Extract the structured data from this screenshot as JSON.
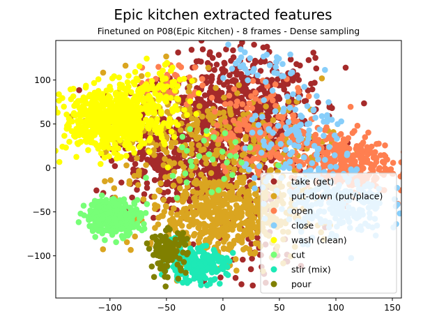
{
  "chart_data": {
    "type": "scatter",
    "title": "Epic kitchen extracted features",
    "subtitle": "Finetuned on P08(Epic Kitchen) - 8 frames - Dense sampling",
    "xlabel": "",
    "ylabel": "",
    "xlim": [
      -148,
      158
    ],
    "ylim": [
      -148,
      145
    ],
    "xticks": [
      -100,
      -50,
      0,
      50,
      100,
      150
    ],
    "yticks": [
      -100,
      -50,
      0,
      50,
      100
    ],
    "grid": false,
    "legend_position": "lower-right",
    "series": [
      {
        "name": "take (get)",
        "color": "#a52a2a",
        "clusters": [
          {
            "cx": 5,
            "cy": 40,
            "sx": 38,
            "sy": 42,
            "n": 700
          },
          {
            "cx": -50,
            "cy": 10,
            "sx": 25,
            "sy": 30,
            "n": 220
          },
          {
            "cx": 30,
            "cy": 90,
            "sx": 30,
            "sy": 20,
            "n": 150
          },
          {
            "cx": 30,
            "cy": -90,
            "sx": 15,
            "sy": 20,
            "n": 40
          }
        ]
      },
      {
        "name": "put-down (put/place)",
        "color": "#daa520",
        "clusters": [
          {
            "cx": 0,
            "cy": -55,
            "sx": 32,
            "sy": 25,
            "n": 550
          },
          {
            "cx": -30,
            "cy": 40,
            "sx": 40,
            "sy": 35,
            "n": 260
          },
          {
            "cx": 40,
            "cy": 20,
            "sx": 30,
            "sy": 30,
            "n": 120
          }
        ]
      },
      {
        "name": "open",
        "color": "#ff7f50",
        "clusters": [
          {
            "cx": 105,
            "cy": 5,
            "sx": 22,
            "sy": 18,
            "n": 320
          },
          {
            "cx": 40,
            "cy": 45,
            "sx": 25,
            "sy": 25,
            "n": 150
          },
          {
            "cx": -50,
            "cy": 95,
            "sx": 15,
            "sy": 15,
            "n": 40
          }
        ]
      },
      {
        "name": "close",
        "color": "#87cefa",
        "clusters": [
          {
            "cx": 100,
            "cy": -40,
            "sx": 22,
            "sy": 20,
            "n": 220
          },
          {
            "cx": 70,
            "cy": 30,
            "sx": 25,
            "sy": 30,
            "n": 120
          },
          {
            "cx": 30,
            "cy": 110,
            "sx": 20,
            "sy": 15,
            "n": 30
          }
        ]
      },
      {
        "name": "wash (clean)",
        "color": "#ffff00",
        "clusters": [
          {
            "cx": -100,
            "cy": 55,
            "sx": 20,
            "sy": 18,
            "n": 600
          },
          {
            "cx": -60,
            "cy": 75,
            "sx": 15,
            "sy": 20,
            "n": 120
          }
        ]
      },
      {
        "name": "cut",
        "color": "#77ff77",
        "clusters": [
          {
            "cx": -97,
            "cy": -55,
            "sx": 12,
            "sy": 10,
            "n": 300
          },
          {
            "cx": -10,
            "cy": 10,
            "sx": 25,
            "sy": 25,
            "n": 30
          }
        ]
      },
      {
        "name": "stir (mix)",
        "color": "#1de9b6",
        "clusters": [
          {
            "cx": -25,
            "cy": -110,
            "sx": 14,
            "sy": 10,
            "n": 200
          }
        ]
      },
      {
        "name": "pour",
        "color": "#808000",
        "clusters": [
          {
            "cx": -48,
            "cy": -95,
            "sx": 8,
            "sy": 12,
            "n": 110
          }
        ]
      }
    ]
  }
}
